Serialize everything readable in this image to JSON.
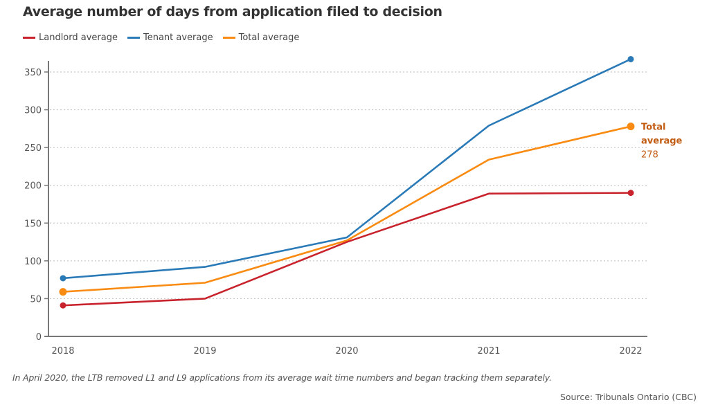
{
  "chart_data": {
    "type": "line",
    "title": "Average number of days from application filed to decision",
    "xlabel": "",
    "ylabel": "",
    "x": [
      "2018",
      "2019",
      "2020",
      "2021",
      "2022"
    ],
    "ylim": [
      0,
      370
    ],
    "yticks": [
      0,
      50,
      100,
      150,
      200,
      250,
      300,
      350
    ],
    "grid": true,
    "legend_position": "top-left",
    "series": [
      {
        "name": "Landlord average",
        "color": "#c8232c",
        "values": [
          41,
          50,
          125,
          189,
          190
        ]
      },
      {
        "name": "Tenant average",
        "color": "#2a7ab8",
        "values": [
          77,
          92,
          131,
          279,
          367
        ]
      },
      {
        "name": "Total average",
        "color": "#f98b12",
        "values": [
          59,
          71,
          127,
          234,
          278
        ]
      }
    ],
    "annotation": {
      "series": "Total average",
      "x": "2022",
      "line1": "Total",
      "line2": "average",
      "value": "278",
      "color": "#c25b12"
    },
    "note": "In April 2020, the LTB removed L1 and L9 applications from its average wait time numbers and began tracking them separately.",
    "source": "Source: Tribunals Ontario (CBC)"
  }
}
